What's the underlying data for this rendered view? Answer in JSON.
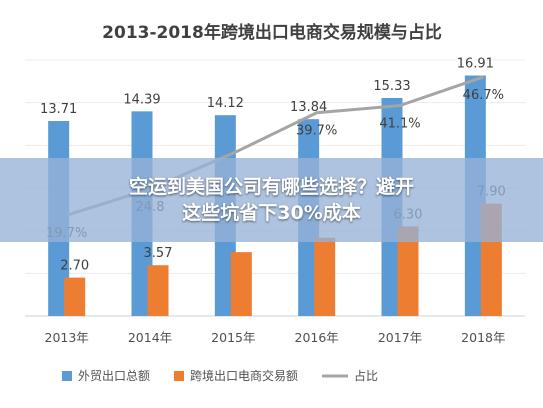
{
  "chart_data": {
    "type": "bar",
    "title": "2013-2018年跨境出口电商交易规模与占比",
    "categories": [
      "2013年",
      "2014年",
      "2015年",
      "2016年",
      "2017年",
      "2018年"
    ],
    "series": [
      {
        "name": "外贸出口总额",
        "kind": "bar",
        "color": "#5b9bd5",
        "values": [
          13.71,
          14.39,
          14.12,
          13.84,
          15.33,
          16.91
        ],
        "labels": [
          "13.71",
          "14.39",
          "14.12",
          "13.84",
          "15.33",
          "16.91"
        ]
      },
      {
        "name": "跨境出口电商交易额",
        "kind": "bar",
        "color": "#ed7d31",
        "values": [
          2.7,
          3.57,
          4.49,
          5.5,
          6.3,
          7.9
        ],
        "labels": [
          "2.70",
          "3.57",
          "",
          "",
          "6.30",
          "7.90"
        ]
      },
      {
        "name": "占比",
        "kind": "line",
        "color": "#a5a5a5",
        "values": [
          19.7,
          24.8,
          31.8,
          39.7,
          41.1,
          46.7
        ],
        "labels": [
          "19.7%",
          "24.8",
          "",
          "39.7%",
          "41.1%",
          "46.7%"
        ]
      }
    ],
    "ylim": [
      0,
      18
    ],
    "y2lim": [
      0,
      50
    ],
    "grid": "horizontal",
    "legend": "bottom"
  },
  "overlay": {
    "line1": "空运到美国公司有哪些选择？避开",
    "line2": "这些坑省下30%成本"
  }
}
